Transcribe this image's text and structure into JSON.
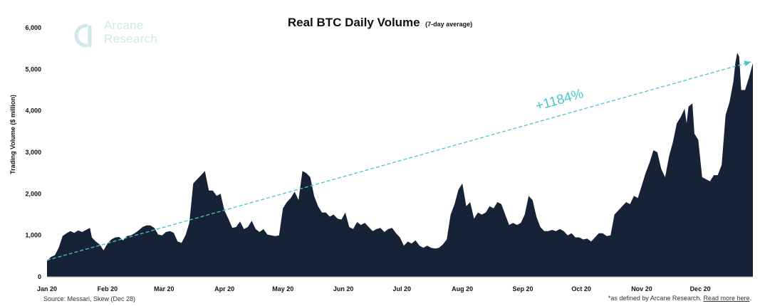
{
  "logo": {
    "line1": "Arcane",
    "line2": "Research"
  },
  "title": "Real BTC Daily Volume",
  "subtitle": "(7-day average)",
  "source": "Source: Messari, Skew (Dec 28)",
  "footnote": {
    "text": "*as defined by Arcane Research. ",
    "link": "Read more here",
    "end": "."
  },
  "annotation": "+1184%",
  "colors": {
    "area": "#162235",
    "trend": "#45c8cc",
    "logo": "#cfe9ea"
  },
  "chart_data": {
    "type": "area",
    "ylabel": "Trading Volume ($ million)",
    "ylim": [
      0,
      6000
    ],
    "yticks": [
      0,
      1000,
      2000,
      3000,
      4000,
      5000,
      6000
    ],
    "ytick_labels": [
      "0",
      "1,000",
      "2,000",
      "3,000",
      "4,000",
      "5,000",
      "6,000"
    ],
    "xlim": [
      "2020-01-01",
      "2020-12-28"
    ],
    "xticks": [
      {
        "date": "2020-01-01",
        "label": "Jan 20"
      },
      {
        "date": "2020-02-01",
        "label": "Feb 20"
      },
      {
        "date": "2020-03-01",
        "label": "Mar 20"
      },
      {
        "date": "2020-04-01",
        "label": "Apr 20"
      },
      {
        "date": "2020-05-01",
        "label": "May 20"
      },
      {
        "date": "2020-06-01",
        "label": "Jun 20"
      },
      {
        "date": "2020-07-01",
        "label": "Jul 20"
      },
      {
        "date": "2020-08-01",
        "label": "Aug 20"
      },
      {
        "date": "2020-09-01",
        "label": "Sep 20"
      },
      {
        "date": "2020-10-01",
        "label": "Oct 20"
      },
      {
        "date": "2020-11-01",
        "label": "Nov 20"
      },
      {
        "date": "2020-12-01",
        "label": "Dec 20"
      }
    ],
    "trend": {
      "from": [
        "2020-01-01",
        400
      ],
      "to": [
        "2020-12-27",
        5180
      ]
    },
    "series": [
      {
        "points": [
          [
            "2020-01-01",
            380
          ],
          [
            "2020-01-03",
            480
          ],
          [
            "2020-01-05",
            520
          ],
          [
            "2020-01-07",
            700
          ],
          [
            "2020-01-09",
            980
          ],
          [
            "2020-01-11",
            1050
          ],
          [
            "2020-01-13",
            1100
          ],
          [
            "2020-01-15",
            1060
          ],
          [
            "2020-01-17",
            1120
          ],
          [
            "2020-01-19",
            1080
          ],
          [
            "2020-01-21",
            1130
          ],
          [
            "2020-01-23",
            1180
          ],
          [
            "2020-01-24",
            950
          ],
          [
            "2020-01-26",
            850
          ],
          [
            "2020-01-28",
            780
          ],
          [
            "2020-01-30",
            640
          ],
          [
            "2020-02-01",
            800
          ],
          [
            "2020-02-03",
            900
          ],
          [
            "2020-02-05",
            950
          ],
          [
            "2020-02-07",
            960
          ],
          [
            "2020-02-09",
            880
          ],
          [
            "2020-02-11",
            980
          ],
          [
            "2020-02-13",
            1000
          ],
          [
            "2020-02-15",
            1050
          ],
          [
            "2020-02-17",
            1120
          ],
          [
            "2020-02-19",
            1200
          ],
          [
            "2020-02-21",
            1240
          ],
          [
            "2020-02-23",
            1240
          ],
          [
            "2020-02-25",
            1180
          ],
          [
            "2020-02-27",
            1020
          ],
          [
            "2020-02-29",
            1000
          ],
          [
            "2020-03-02",
            1080
          ],
          [
            "2020-03-04",
            1100
          ],
          [
            "2020-03-06",
            1060
          ],
          [
            "2020-03-08",
            850
          ],
          [
            "2020-03-10",
            820
          ],
          [
            "2020-03-12",
            1000
          ],
          [
            "2020-03-14",
            1300
          ],
          [
            "2020-03-16",
            2250
          ],
          [
            "2020-03-18",
            2350
          ],
          [
            "2020-03-20",
            2450
          ],
          [
            "2020-03-22",
            2550
          ],
          [
            "2020-03-24",
            2080
          ],
          [
            "2020-03-26",
            2080
          ],
          [
            "2020-03-28",
            1950
          ],
          [
            "2020-03-30",
            2000
          ],
          [
            "2020-04-01",
            1600
          ],
          [
            "2020-04-03",
            1400
          ],
          [
            "2020-04-05",
            1180
          ],
          [
            "2020-04-07",
            1200
          ],
          [
            "2020-04-09",
            1330
          ],
          [
            "2020-04-11",
            1150
          ],
          [
            "2020-04-13",
            1200
          ],
          [
            "2020-04-15",
            1350
          ],
          [
            "2020-04-17",
            1150
          ],
          [
            "2020-04-19",
            1080
          ],
          [
            "2020-04-21",
            1150
          ],
          [
            "2020-04-23",
            1020
          ],
          [
            "2020-04-25",
            1000
          ],
          [
            "2020-04-27",
            980
          ],
          [
            "2020-04-29",
            1000
          ],
          [
            "2020-05-01",
            1650
          ],
          [
            "2020-05-03",
            1800
          ],
          [
            "2020-05-05",
            1900
          ],
          [
            "2020-05-07",
            2050
          ],
          [
            "2020-05-09",
            1850
          ],
          [
            "2020-05-11",
            2550
          ],
          [
            "2020-05-13",
            2500
          ],
          [
            "2020-05-15",
            2400
          ],
          [
            "2020-05-17",
            1950
          ],
          [
            "2020-05-19",
            1700
          ],
          [
            "2020-05-21",
            1550
          ],
          [
            "2020-05-23",
            1550
          ],
          [
            "2020-05-25",
            1450
          ],
          [
            "2020-05-27",
            1500
          ],
          [
            "2020-05-29",
            1400
          ],
          [
            "2020-05-31",
            1380
          ],
          [
            "2020-06-02",
            1550
          ],
          [
            "2020-06-04",
            1200
          ],
          [
            "2020-06-06",
            1150
          ],
          [
            "2020-06-08",
            1320
          ],
          [
            "2020-06-10",
            1250
          ],
          [
            "2020-06-12",
            1300
          ],
          [
            "2020-06-14",
            1200
          ],
          [
            "2020-06-16",
            1100
          ],
          [
            "2020-06-18",
            1150
          ],
          [
            "2020-06-20",
            1180
          ],
          [
            "2020-06-22",
            1080
          ],
          [
            "2020-06-24",
            1150
          ],
          [
            "2020-06-26",
            1180
          ],
          [
            "2020-06-28",
            1050
          ],
          [
            "2020-06-30",
            950
          ],
          [
            "2020-07-02",
            750
          ],
          [
            "2020-07-04",
            850
          ],
          [
            "2020-07-06",
            800
          ],
          [
            "2020-07-08",
            880
          ],
          [
            "2020-07-10",
            750
          ],
          [
            "2020-07-12",
            700
          ],
          [
            "2020-07-14",
            750
          ],
          [
            "2020-07-16",
            700
          ],
          [
            "2020-07-18",
            680
          ],
          [
            "2020-07-20",
            700
          ],
          [
            "2020-07-22",
            780
          ],
          [
            "2020-07-24",
            900
          ],
          [
            "2020-07-26",
            1500
          ],
          [
            "2020-07-28",
            1750
          ],
          [
            "2020-07-30",
            2100
          ],
          [
            "2020-08-01",
            2250
          ],
          [
            "2020-08-03",
            1700
          ],
          [
            "2020-08-05",
            1800
          ],
          [
            "2020-08-07",
            1400
          ],
          [
            "2020-08-09",
            1550
          ],
          [
            "2020-08-11",
            1500
          ],
          [
            "2020-08-13",
            1550
          ],
          [
            "2020-08-15",
            1700
          ],
          [
            "2020-08-17",
            1650
          ],
          [
            "2020-08-19",
            1800
          ],
          [
            "2020-08-21",
            1750
          ],
          [
            "2020-08-23",
            1500
          ],
          [
            "2020-08-25",
            1250
          ],
          [
            "2020-08-27",
            1300
          ],
          [
            "2020-08-29",
            1250
          ],
          [
            "2020-08-31",
            1300
          ],
          [
            "2020-09-02",
            1500
          ],
          [
            "2020-09-04",
            1950
          ],
          [
            "2020-09-06",
            1850
          ],
          [
            "2020-09-08",
            1450
          ],
          [
            "2020-09-10",
            1200
          ],
          [
            "2020-09-12",
            1100
          ],
          [
            "2020-09-14",
            1100
          ],
          [
            "2020-09-16",
            1130
          ],
          [
            "2020-09-18",
            1100
          ],
          [
            "2020-09-20",
            1150
          ],
          [
            "2020-09-22",
            1100
          ],
          [
            "2020-09-24",
            1000
          ],
          [
            "2020-09-26",
            1050
          ],
          [
            "2020-09-28",
            950
          ],
          [
            "2020-09-30",
            950
          ],
          [
            "2020-10-02",
            900
          ],
          [
            "2020-10-04",
            920
          ],
          [
            "2020-10-06",
            850
          ],
          [
            "2020-10-08",
            950
          ],
          [
            "2020-10-10",
            1050
          ],
          [
            "2020-10-12",
            1050
          ],
          [
            "2020-10-14",
            980
          ],
          [
            "2020-10-16",
            1000
          ],
          [
            "2020-10-18",
            1500
          ],
          [
            "2020-10-20",
            1600
          ],
          [
            "2020-10-22",
            1700
          ],
          [
            "2020-10-24",
            1800
          ],
          [
            "2020-10-26",
            1750
          ],
          [
            "2020-10-28",
            1950
          ],
          [
            "2020-10-30",
            1900
          ],
          [
            "2020-11-01",
            2200
          ],
          [
            "2020-11-03",
            2500
          ],
          [
            "2020-11-05",
            2750
          ],
          [
            "2020-11-07",
            3050
          ],
          [
            "2020-11-09",
            3000
          ],
          [
            "2020-11-11",
            2600
          ],
          [
            "2020-11-13",
            2400
          ],
          [
            "2020-11-15",
            2900
          ],
          [
            "2020-11-17",
            3250
          ],
          [
            "2020-11-19",
            3700
          ],
          [
            "2020-11-21",
            3850
          ],
          [
            "2020-11-23",
            4050
          ],
          [
            "2020-11-24",
            3700
          ],
          [
            "2020-11-25",
            4100
          ],
          [
            "2020-11-27",
            4180
          ],
          [
            "2020-11-28",
            3450
          ],
          [
            "2020-11-30",
            3300
          ],
          [
            "2020-12-02",
            2400
          ],
          [
            "2020-12-04",
            2350
          ],
          [
            "2020-12-06",
            2300
          ],
          [
            "2020-12-08",
            2450
          ],
          [
            "2020-12-10",
            2450
          ],
          [
            "2020-12-12",
            2700
          ],
          [
            "2020-12-14",
            3900
          ],
          [
            "2020-12-16",
            4200
          ],
          [
            "2020-12-18",
            4700
          ],
          [
            "2020-12-19",
            5150
          ],
          [
            "2020-12-20",
            5400
          ],
          [
            "2020-12-21",
            5300
          ],
          [
            "2020-12-22",
            4500
          ],
          [
            "2020-12-24",
            4500
          ],
          [
            "2020-12-26",
            4800
          ],
          [
            "2020-12-28",
            5150
          ]
        ]
      }
    ]
  }
}
